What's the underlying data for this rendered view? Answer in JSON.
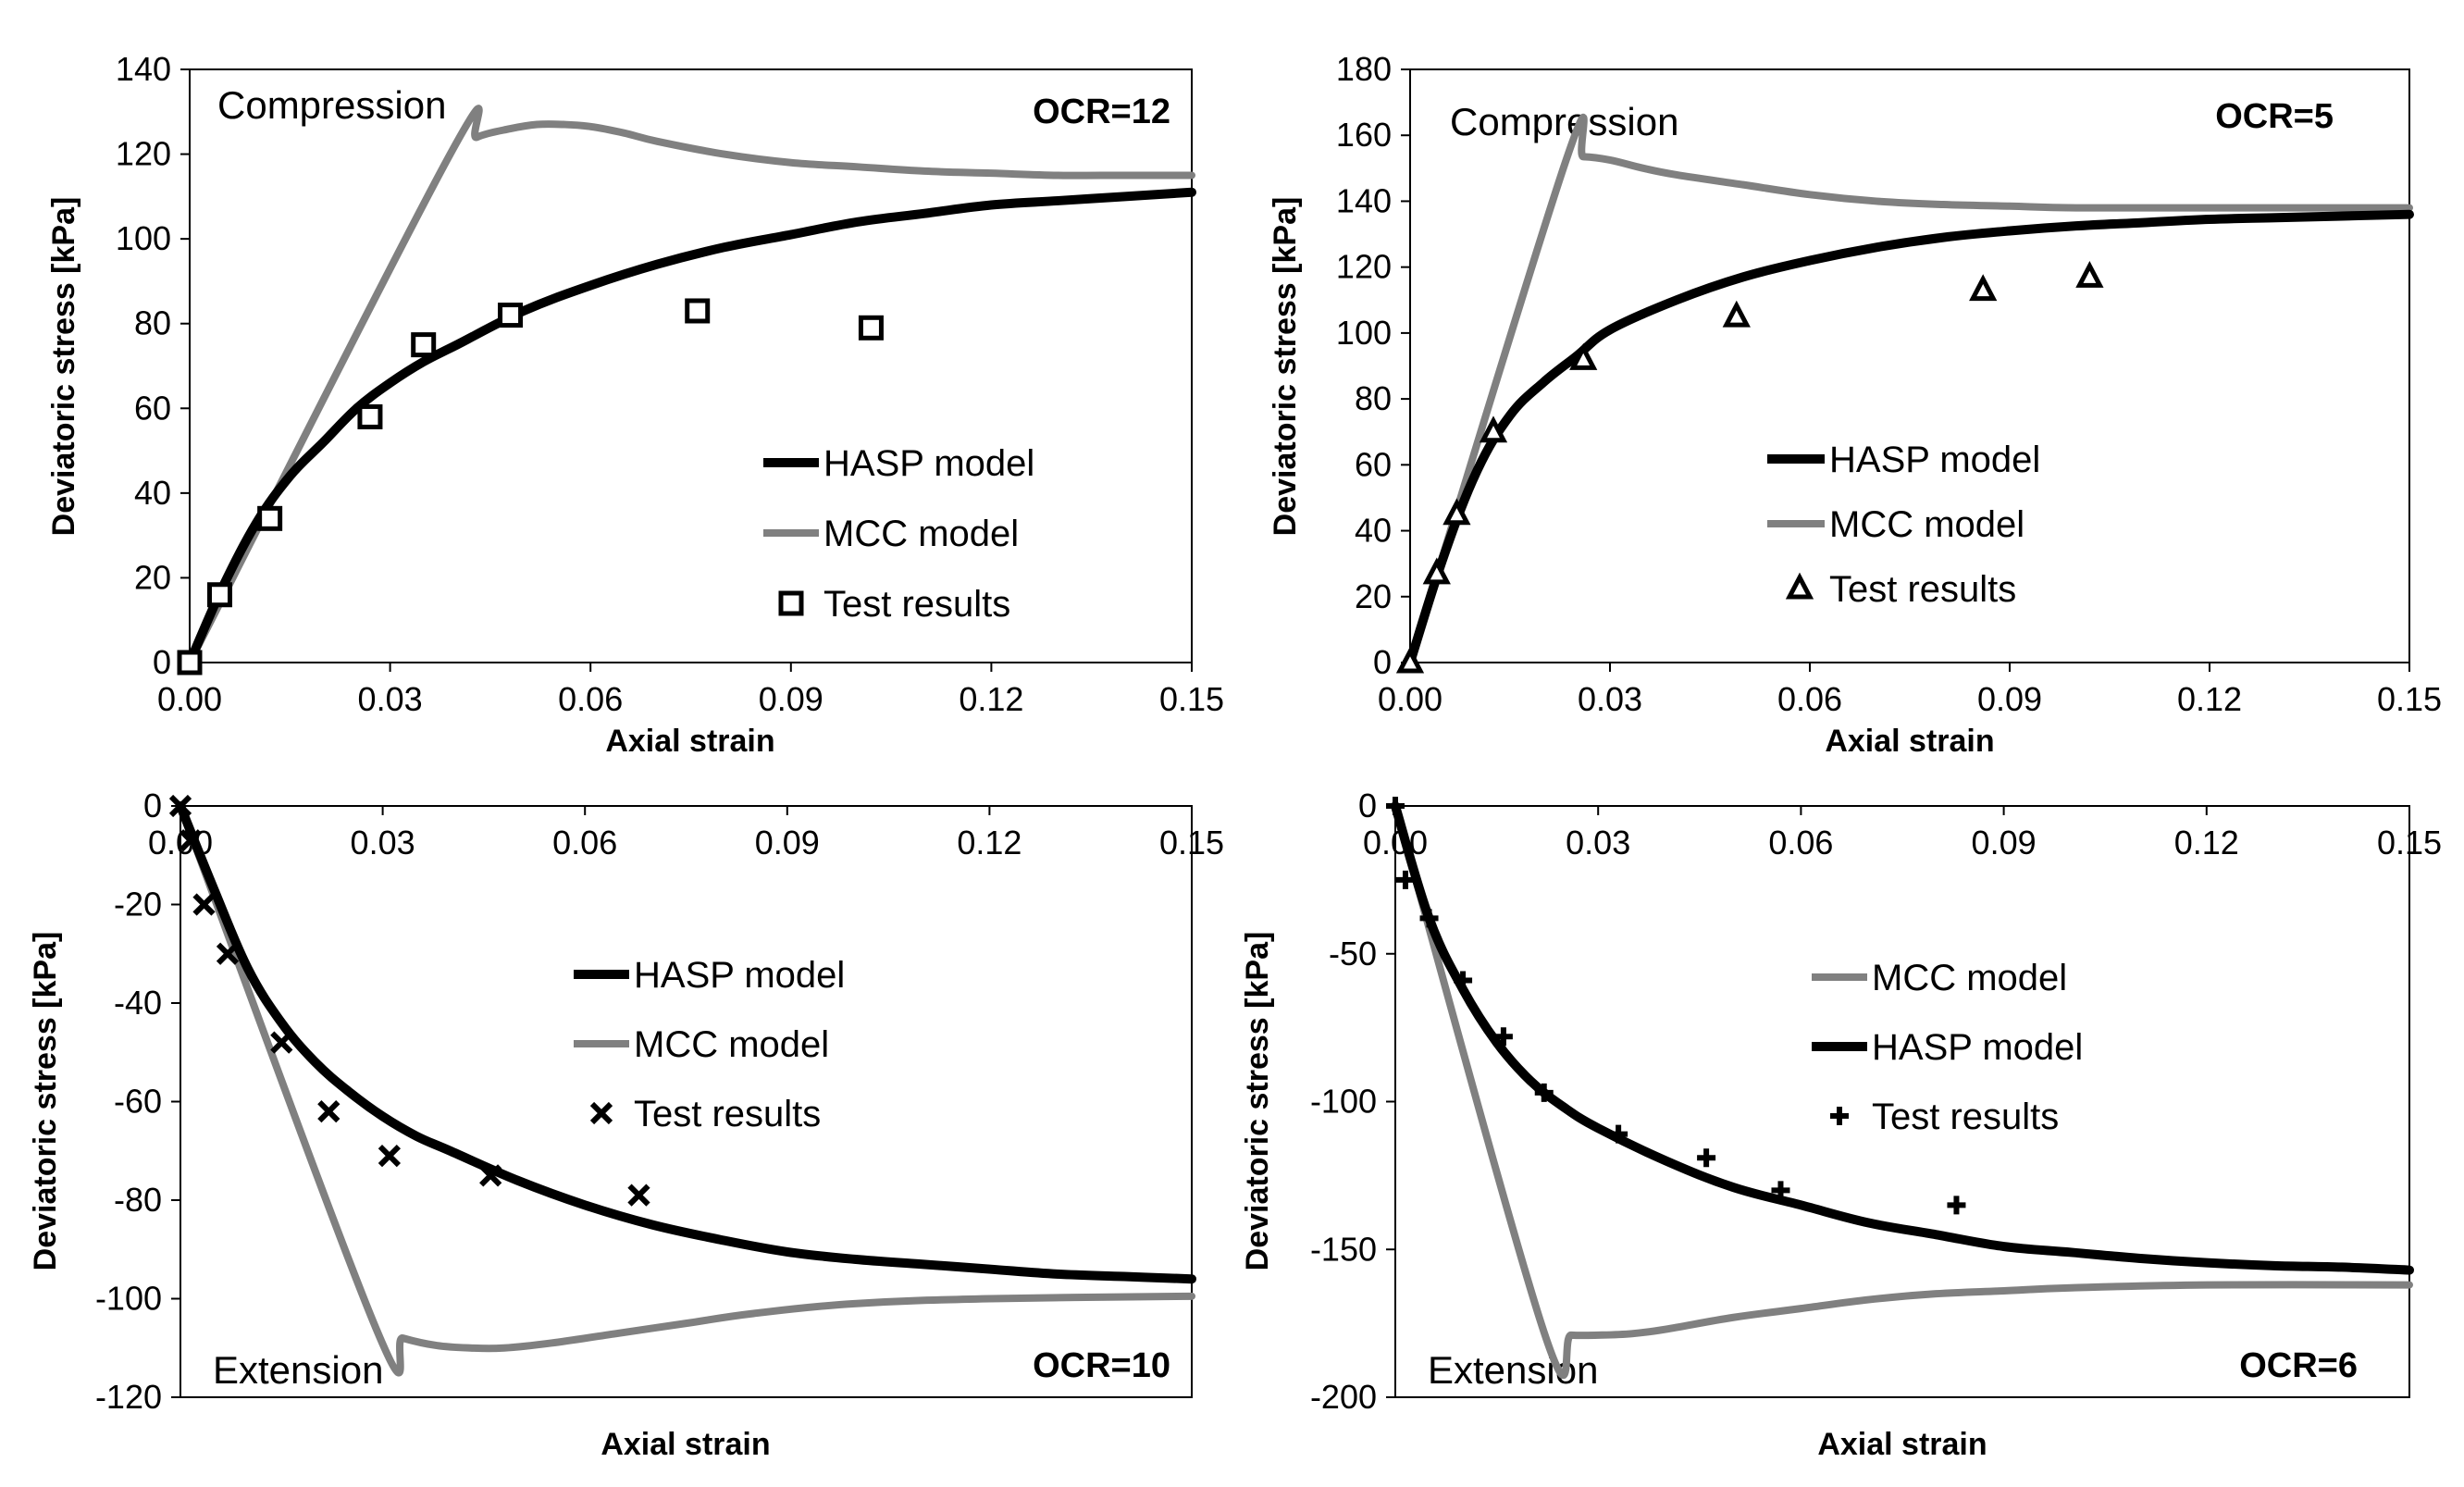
{
  "chart_data": [
    {
      "type": "line",
      "panel": "top-left",
      "annotation": "Compression",
      "ocr_label": "OCR=12",
      "xlabel": "Axial strain",
      "ylabel": "Deviatoric stress [kPa]",
      "xlim": [
        0,
        0.15
      ],
      "ylim": [
        0,
        140
      ],
      "xticks": [
        "0.00",
        "0.03",
        "0.06",
        "0.09",
        "0.12",
        "0.15"
      ],
      "yticks": [
        "0",
        "20",
        "40",
        "60",
        "80",
        "100",
        "120",
        "140"
      ],
      "x_axis_position": "bottom",
      "legend_position": "center-right",
      "legend_order": [
        "HASP model",
        "MCC model",
        "Test results"
      ],
      "series": [
        {
          "name": "HASP model",
          "kind": "line",
          "color": "#000000",
          "x": [
            0,
            0.005,
            0.01,
            0.015,
            0.02,
            0.025,
            0.03,
            0.035,
            0.04,
            0.05,
            0.06,
            0.07,
            0.08,
            0.09,
            0.1,
            0.11,
            0.12,
            0.13,
            0.14,
            0.15
          ],
          "y": [
            0,
            18,
            33,
            44,
            52,
            60,
            66,
            71,
            75,
            83,
            89,
            94,
            98,
            101,
            104,
            106,
            108,
            109,
            110,
            111
          ]
        },
        {
          "name": "MCC model",
          "kind": "line",
          "color": "#808080",
          "x": [
            0,
            0.039,
            0.043,
            0.048,
            0.052,
            0.056,
            0.06,
            0.065,
            0.07,
            0.08,
            0.09,
            0.1,
            0.11,
            0.12,
            0.13,
            0.14,
            0.15
          ],
          "y": [
            0,
            120,
            124,
            126,
            127,
            127,
            126.5,
            125,
            123,
            120,
            118,
            117,
            116,
            115.5,
            115,
            115,
            115
          ]
        },
        {
          "name": "Test results",
          "kind": "marker",
          "marker": "square",
          "color": "#000000",
          "x": [
            0,
            0.0045,
            0.012,
            0.027,
            0.035,
            0.048,
            0.076,
            0.102
          ],
          "y": [
            0,
            16,
            34,
            58,
            75,
            82,
            83,
            79
          ]
        }
      ]
    },
    {
      "type": "line",
      "panel": "top-right",
      "annotation": "Compression",
      "ocr_label": "OCR=5",
      "xlabel": "Axial strain",
      "ylabel": "Deviatoric stress [kPa]",
      "xlim": [
        0,
        0.15
      ],
      "ylim": [
        0,
        180
      ],
      "xticks": [
        "0.00",
        "0.03",
        "0.06",
        "0.09",
        "0.12",
        "0.15"
      ],
      "yticks": [
        "0",
        "20",
        "40",
        "60",
        "80",
        "100",
        "120",
        "140",
        "160",
        "180"
      ],
      "x_axis_position": "bottom",
      "legend_position": "center-right",
      "legend_order": [
        "HASP model",
        "MCC model",
        "Test results"
      ],
      "series": [
        {
          "name": "HASP model",
          "kind": "line",
          "color": "#000000",
          "x": [
            0,
            0.005,
            0.01,
            0.015,
            0.02,
            0.025,
            0.03,
            0.04,
            0.05,
            0.06,
            0.07,
            0.08,
            0.09,
            0.1,
            0.11,
            0.12,
            0.13,
            0.14,
            0.15
          ],
          "y": [
            0,
            32,
            58,
            75,
            85,
            93,
            101,
            110,
            117,
            122,
            126,
            129,
            131,
            132.5,
            133.5,
            134.5,
            135,
            135.5,
            136
          ]
        },
        {
          "name": "MCC model",
          "kind": "line",
          "color": "#808080",
          "x": [
            0,
            0.0235,
            0.026,
            0.03,
            0.035,
            0.04,
            0.05,
            0.06,
            0.07,
            0.08,
            0.09,
            0.1,
            0.12,
            0.15
          ],
          "y": [
            0,
            153,
            153.5,
            152.5,
            150,
            148,
            145,
            142,
            140,
            139,
            138.5,
            138,
            138,
            138
          ]
        },
        {
          "name": "Test results",
          "kind": "marker",
          "marker": "triangle",
          "color": "#000000",
          "x": [
            0,
            0.004,
            0.007,
            0.0125,
            0.026,
            0.049,
            0.086,
            0.102
          ],
          "y": [
            0,
            27,
            45,
            70,
            92,
            105,
            113,
            117
          ]
        }
      ]
    },
    {
      "type": "line",
      "panel": "bottom-left",
      "annotation": "Extension",
      "ocr_label": "OCR=10",
      "xlabel": "Axial strain",
      "ylabel": "Deviatoric stress [kPa]",
      "xlim": [
        0,
        0.15
      ],
      "ylim": [
        -120,
        0
      ],
      "xticks": [
        "0.00",
        "0.03",
        "0.06",
        "0.09",
        "0.12",
        "0.15"
      ],
      "yticks": [
        "0",
        "-20",
        "-40",
        "-60",
        "-80",
        "-100",
        "-120"
      ],
      "x_axis_position": "top",
      "legend_position": "center",
      "legend_order": [
        "HASP model",
        "MCC model",
        "Test results"
      ],
      "series": [
        {
          "name": "HASP model",
          "kind": "line",
          "color": "#000000",
          "x": [
            0,
            0.005,
            0.01,
            0.015,
            0.02,
            0.025,
            0.03,
            0.035,
            0.04,
            0.05,
            0.06,
            0.07,
            0.08,
            0.09,
            0.1,
            0.11,
            0.12,
            0.13,
            0.14,
            0.15
          ],
          "y": [
            0,
            -17,
            -33,
            -44,
            -52,
            -58,
            -63,
            -67,
            -70,
            -76,
            -81,
            -85,
            -88,
            -90.5,
            -92,
            -93,
            -94,
            -95,
            -95.5,
            -96
          ]
        },
        {
          "name": "MCC model",
          "kind": "line",
          "color": "#808080",
          "x": [
            0,
            0.029,
            0.033,
            0.038,
            0.043,
            0.048,
            0.055,
            0.065,
            0.075,
            0.085,
            0.1,
            0.12,
            0.15
          ],
          "y": [
            0,
            -106,
            -108,
            -109.5,
            -110,
            -110,
            -109,
            -107,
            -105,
            -103,
            -101,
            -100,
            -99.5
          ]
        },
        {
          "name": "Test results",
          "kind": "marker",
          "marker": "x",
          "color": "#000000",
          "x": [
            0,
            0.0015,
            0.0035,
            0.007,
            0.015,
            0.022,
            0.031,
            0.046,
            0.068
          ],
          "y": [
            0,
            -7,
            -20,
            -30,
            -48,
            -62,
            -71,
            -75,
            -79
          ]
        }
      ]
    },
    {
      "type": "line",
      "panel": "bottom-right",
      "annotation": "Extension",
      "ocr_label": "OCR=6",
      "xlabel": "Axial strain",
      "ylabel": "Deviatoric stress [kPa]",
      "xlim": [
        0,
        0.15
      ],
      "ylim": [
        -200,
        0
      ],
      "xticks": [
        "0.00",
        "0.03",
        "0.06",
        "0.09",
        "0.12",
        "0.15"
      ],
      "yticks": [
        "0",
        "-50",
        "-100",
        "-150",
        "-200"
      ],
      "x_axis_position": "top",
      "legend_position": "center",
      "legend_order": [
        "MCC model",
        "HASP model",
        "Test results"
      ],
      "series": [
        {
          "name": "HASP model",
          "kind": "line",
          "color": "#000000",
          "x": [
            0,
            0.005,
            0.01,
            0.015,
            0.02,
            0.025,
            0.03,
            0.04,
            0.05,
            0.06,
            0.07,
            0.08,
            0.09,
            0.1,
            0.11,
            0.12,
            0.13,
            0.14,
            0.15
          ],
          "y": [
            0,
            -38,
            -62,
            -80,
            -93,
            -102,
            -109,
            -120,
            -129,
            -135,
            -141,
            -145,
            -149,
            -151,
            -153,
            -154.5,
            -155.5,
            -156,
            -157
          ]
        },
        {
          "name": "MCC model",
          "kind": "line",
          "color": "#808080",
          "x": [
            0,
            0.022,
            0.026,
            0.03,
            0.035,
            0.04,
            0.05,
            0.06,
            0.07,
            0.08,
            0.09,
            0.1,
            0.12,
            0.15
          ],
          "y": [
            0,
            -178,
            -179,
            -179,
            -178.5,
            -177,
            -173,
            -170,
            -167,
            -165,
            -164,
            -163,
            -162,
            -162
          ]
        },
        {
          "name": "Test results",
          "kind": "marker",
          "marker": "plus",
          "color": "#000000",
          "x": [
            0,
            0.0015,
            0.005,
            0.01,
            0.016,
            0.022,
            0.033,
            0.046,
            0.057,
            0.083
          ],
          "y": [
            0,
            -25,
            -38,
            -59,
            -78,
            -97,
            -111,
            -119,
            -130,
            -135
          ]
        }
      ]
    }
  ]
}
